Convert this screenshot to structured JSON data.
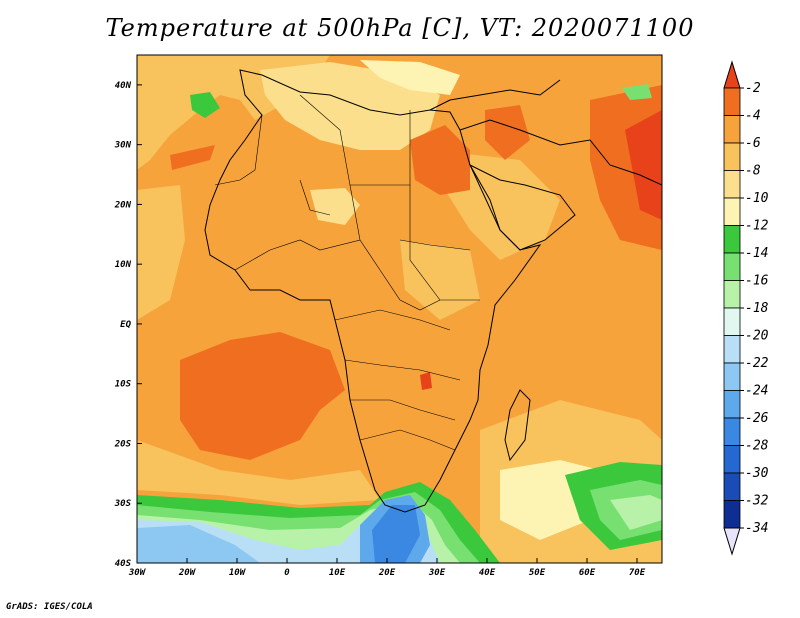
{
  "title": "Temperature at 500hPa [C], VT: 2020071100",
  "credit": "GrADS: IGES/COLA",
  "map": {
    "lon_range": [
      -30,
      75
    ],
    "lat_range": [
      -40,
      45
    ],
    "lon_ticks": [
      "30W",
      "20W",
      "10W",
      "0",
      "10E",
      "20E",
      "30E",
      "40E",
      "50E",
      "60E",
      "70E"
    ],
    "lon_values": [
      -30,
      -20,
      -10,
      0,
      10,
      20,
      30,
      40,
      50,
      60,
      70
    ],
    "lat_ticks": [
      "40N",
      "30N",
      "20N",
      "10N",
      "EQ",
      "10S",
      "20S",
      "30S",
      "40S"
    ],
    "lat_values": [
      40,
      30,
      20,
      10,
      0,
      -10,
      -20,
      -30,
      -40
    ],
    "background_color": "#f7a33c"
  },
  "colorbar": {
    "labels": [
      "-2",
      "-4",
      "-6",
      "-8",
      "-10",
      "-12",
      "-14",
      "-16",
      "-18",
      "-20",
      "-22",
      "-24",
      "-26",
      "-28",
      "-30",
      "-32",
      "-34"
    ],
    "top_color": "#e8421a",
    "bottom_color": "#e8e4fb",
    "colors": [
      "#f06e1f",
      "#f7a33c",
      "#f8c25c",
      "#fbdf8c",
      "#fdf3b3",
      "#3cc83c",
      "#78e070",
      "#b8f2a8",
      "#e0f8f0",
      "#b9dff6",
      "#8cc8f2",
      "#5ea8ec",
      "#3a88e2",
      "#2468d2",
      "#1a4cb8",
      "#0f2e94"
    ]
  }
}
